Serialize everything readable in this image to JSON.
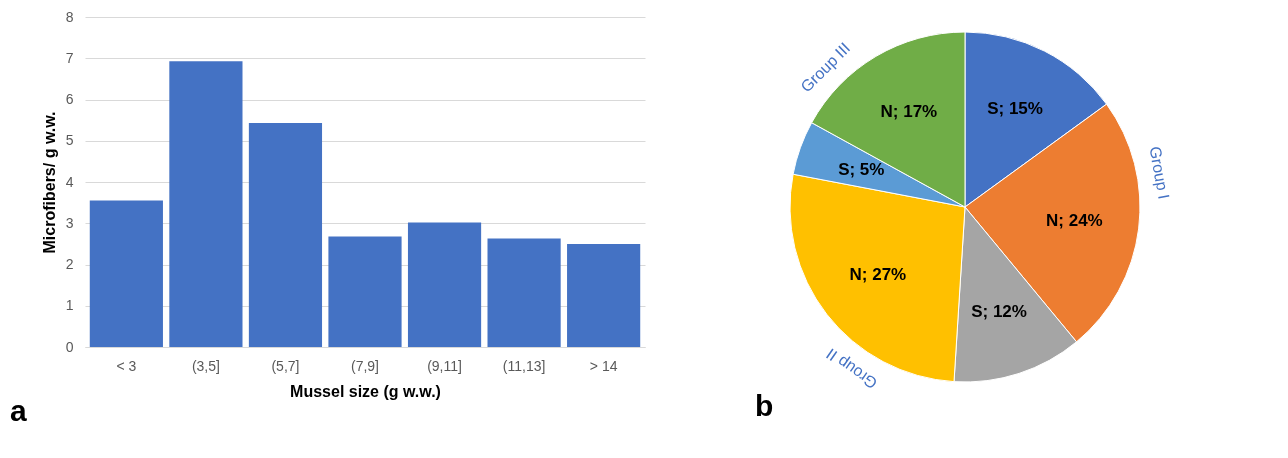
{
  "chart_data": [
    {
      "type": "bar",
      "xlabel": "Mussel size (g w.w.)",
      "ylabel": "Microfibers/ g w.w.",
      "categories": [
        "< 3",
        "(3,5]",
        "(5,7]",
        "(7,9]",
        "(9,11]",
        "(11,13]",
        "> 14"
      ],
      "values": [
        3.55,
        6.93,
        5.43,
        2.68,
        3.02,
        2.63,
        2.5
      ],
      "color": "#4472c4",
      "ylim": [
        0,
        8
      ],
      "yticks": [
        0,
        1,
        2,
        3,
        4,
        5,
        6,
        7,
        8
      ],
      "grid": "y",
      "annotations": [
        "a"
      ]
    },
    {
      "type": "pie",
      "categories": [
        "S",
        "N",
        "S",
        "N",
        "S",
        "N"
      ],
      "values": [
        15,
        24,
        12,
        27,
        5,
        17
      ],
      "colors": [
        "#4472c4",
        "#ed7d31",
        "#a5a5a5",
        "#ffc000",
        "#5b9bd5",
        "#70ad47"
      ],
      "value_labels": [
        "15%",
        "24%",
        "12%",
        "27%",
        "5%",
        "17%"
      ],
      "annotations": [
        "b",
        "Group I",
        "Group II",
        "Group III"
      ]
    }
  ]
}
